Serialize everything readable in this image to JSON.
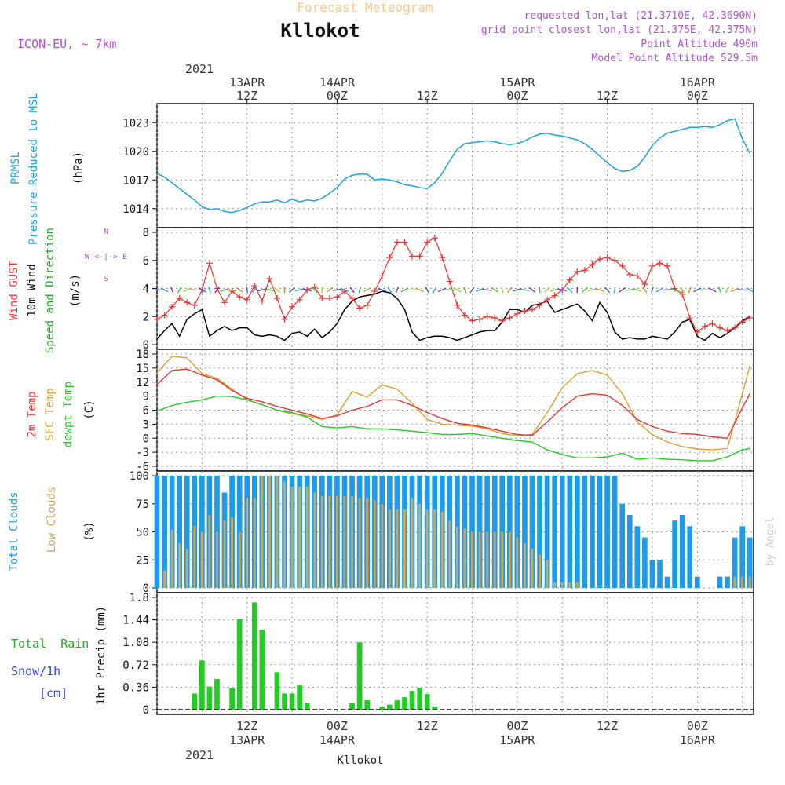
{
  "header": {
    "title_top": "Forecast Meteogram",
    "location": "Kllokot",
    "model": "ICON-EU, ~ 7km",
    "requested": "requested lon,lat (21.3710E, 42.3690N)",
    "grid_point": "grid point closest lon,lat (21.375E, 42.375N)",
    "point_altitude": "Point Altitude 490m",
    "model_altitude": "Model Point Altitude 529.5m"
  },
  "time_axis": {
    "year": "2021",
    "top_labels": [
      {
        "hour": 12,
        "line1": "13APR",
        "line2": "12Z"
      },
      {
        "hour": 24,
        "line1": "14APR",
        "line2": "00Z"
      },
      {
        "hour": 36,
        "line1": "",
        "line2": "12Z"
      },
      {
        "hour": 48,
        "line1": "15APR",
        "line2": "00Z"
      },
      {
        "hour": 60,
        "line1": "",
        "line2": "12Z"
      },
      {
        "hour": 72,
        "line1": "16APR",
        "line2": "00Z"
      }
    ],
    "bottom_labels": [
      {
        "hour": 12,
        "line1": "12Z",
        "line2": "13APR"
      },
      {
        "hour": 24,
        "line1": "00Z",
        "line2": "14APR"
      },
      {
        "hour": 36,
        "line1": "12Z",
        "line2": ""
      },
      {
        "hour": 48,
        "line1": "00Z",
        "line2": "15APR"
      },
      {
        "hour": 60,
        "line1": "12Z",
        "line2": ""
      },
      {
        "hour": 72,
        "line1": "00Z",
        "line2": "16APR"
      }
    ],
    "footer_station": "Kllokot",
    "watermark": "by Angel"
  },
  "panel_labels": {
    "pressure": {
      "label1": "PRMSL",
      "label2": "Pressure Reduced to MSL",
      "unit": "(hPa)"
    },
    "wind": {
      "label1": "Wind GUST",
      "label2": "10m Wind",
      "label3": "Speed and Direction",
      "unit": "(m/s)",
      "compass": "W <-|-> E"
    },
    "temp": {
      "label1": "2m Temp",
      "label2": "SFC Temp",
      "label3": "dewpt Temp",
      "unit": "(C)"
    },
    "clouds": {
      "label1": "Total Clouds",
      "label2": "Low Clouds",
      "unit": "(%)"
    },
    "precip": {
      "label1": "Total  Rain",
      "label2": "Snow/1h",
      "label3": "[cm]",
      "unit": "1hr Precip (mm)"
    }
  },
  "colors": {
    "pressure": "#1aa3e6",
    "gust": "#ee3333",
    "wind": "#000000",
    "t2m": "#ee3333",
    "tsfc": "#dda030",
    "dewpt": "#22cc22",
    "total_clouds": "#1e9be8",
    "low_clouds": "#c8a85a",
    "rain": "#22cc22",
    "snow": "#3344ee",
    "header_purple": "#b050d0",
    "title_orange": "#f5c890"
  },
  "chart_data": [
    {
      "type": "line",
      "name": "pressure",
      "ylim": [
        1012.5,
        1024.5
      ],
      "yticks": [
        1014,
        1017,
        1020,
        1023
      ],
      "x": [
        0,
        1,
        2,
        3,
        4,
        5,
        6,
        7,
        8,
        9,
        10,
        11,
        12,
        13,
        14,
        15,
        16,
        17,
        18,
        19,
        20,
        21,
        22,
        23,
        24,
        25,
        26,
        27,
        28,
        29,
        30,
        31,
        32,
        33,
        34,
        35,
        36,
        37,
        38,
        39,
        40,
        41,
        42,
        43,
        44,
        45,
        46,
        47,
        48,
        49,
        50,
        51,
        52,
        53,
        54,
        55,
        56,
        57,
        58,
        59,
        60,
        61,
        62,
        63,
        64,
        65,
        66,
        67,
        68,
        69,
        70,
        71,
        72,
        73,
        74,
        75,
        76,
        77,
        78,
        79
      ],
      "values": [
        1017.7,
        1017.3,
        1016.7,
        1016.1,
        1015.5,
        1014.9,
        1014.2,
        1013.9,
        1014.0,
        1013.7,
        1013.6,
        1013.8,
        1014.1,
        1014.5,
        1014.7,
        1014.7,
        1014.9,
        1014.6,
        1015.0,
        1014.7,
        1014.9,
        1014.8,
        1015.1,
        1015.6,
        1016.2,
        1017.1,
        1017.5,
        1017.6,
        1017.6,
        1017.0,
        1017.1,
        1017.0,
        1016.8,
        1016.5,
        1016.4,
        1016.2,
        1016.1,
        1016.7,
        1017.7,
        1019.0,
        1020.2,
        1020.8,
        1020.9,
        1021.0,
        1021.1,
        1021.0,
        1020.8,
        1020.7,
        1020.8,
        1021.1,
        1021.5,
        1021.8,
        1021.9,
        1021.7,
        1021.6,
        1021.4,
        1021.2,
        1020.8,
        1020.2,
        1019.5,
        1018.8,
        1018.2,
        1017.9,
        1018.0,
        1018.4,
        1019.4,
        1020.6,
        1021.4,
        1021.9,
        1022.1,
        1022.3,
        1022.5,
        1022.5,
        1022.6,
        1022.5,
        1022.8,
        1023.2,
        1023.4,
        1021.3,
        1019.8
      ]
    },
    {
      "type": "line",
      "name": "wind",
      "ylim": [
        0,
        8
      ],
      "yticks": [
        0,
        2,
        4,
        6,
        8
      ],
      "x": [
        0,
        1,
        2,
        3,
        4,
        5,
        6,
        7,
        8,
        9,
        10,
        11,
        12,
        13,
        14,
        15,
        16,
        17,
        18,
        19,
        20,
        21,
        22,
        23,
        24,
        25,
        26,
        27,
        28,
        29,
        30,
        31,
        32,
        33,
        34,
        35,
        36,
        37,
        38,
        39,
        40,
        41,
        42,
        43,
        44,
        45,
        46,
        47,
        48,
        49,
        50,
        51,
        52,
        53,
        54,
        55,
        56,
        57,
        58,
        59,
        60,
        61,
        62,
        63,
        64,
        65,
        66,
        67,
        68,
        69,
        70,
        71,
        72,
        73,
        74,
        75,
        76,
        77,
        78,
        79
      ],
      "series": [
        {
          "name": "Wind GUST",
          "values": [
            1.8,
            2.1,
            2.7,
            3.3,
            3.0,
            2.8,
            3.9,
            5.8,
            4.0,
            3.0,
            3.8,
            3.4,
            3.2,
            4.2,
            3.1,
            4.7,
            3.3,
            1.8,
            2.7,
            3.2,
            3.9,
            4.1,
            3.3,
            3.3,
            3.4,
            3.8,
            3.3,
            2.6,
            2.8,
            3.8,
            4.9,
            6.2,
            7.3,
            7.3,
            6.3,
            6.3,
            7.3,
            7.6,
            6.2,
            4.5,
            2.8,
            2.1,
            1.7,
            1.8,
            2.0,
            1.9,
            1.7,
            1.9,
            2.2,
            2.4,
            2.5,
            2.8,
            3.2,
            3.5,
            3.9,
            4.6,
            5.2,
            5.3,
            5.7,
            6.1,
            6.2,
            6.0,
            5.6,
            5.0,
            4.9,
            4.3,
            5.6,
            5.8,
            5.6,
            4.0,
            3.6,
            1.9,
            0.9,
            1.3,
            1.5,
            1.2,
            1.0,
            1.2,
            1.6,
            1.9
          ]
        },
        {
          "name": "10m Wind",
          "values": [
            0.4,
            1.0,
            1.5,
            0.6,
            1.8,
            2.2,
            2.5,
            0.6,
            1.0,
            1.3,
            1.0,
            1.2,
            1.2,
            0.7,
            0.6,
            0.7,
            0.6,
            0.3,
            0.8,
            0.9,
            0.6,
            1.1,
            0.5,
            0.9,
            1.5,
            2.5,
            3.1,
            3.4,
            3.5,
            3.6,
            3.8,
            3.7,
            3.3,
            2.5,
            0.9,
            0.3,
            0.5,
            0.6,
            0.6,
            0.5,
            0.3,
            0.5,
            0.7,
            0.9,
            1.0,
            1.0,
            1.6,
            2.5,
            2.5,
            2.3,
            2.8,
            2.9,
            3.1,
            2.3,
            2.5,
            2.7,
            2.9,
            2.4,
            1.7,
            3.0,
            2.3,
            0.9,
            0.4,
            0.5,
            0.4,
            0.4,
            0.6,
            0.5,
            0.4,
            0.9,
            1.6,
            1.8,
            0.6,
            0.3,
            0.8,
            0.5,
            0.8,
            1.2,
            1.7,
            2.0
          ]
        }
      ]
    },
    {
      "type": "line",
      "name": "temperature",
      "ylim": [
        -6,
        18
      ],
      "yticks": [
        -6,
        -3,
        0,
        3,
        6,
        9,
        12,
        15,
        18
      ],
      "x": [
        0,
        2,
        4,
        6,
        8,
        10,
        12,
        14,
        16,
        18,
        20,
        22,
        24,
        26,
        28,
        30,
        32,
        34,
        36,
        38,
        40,
        42,
        44,
        46,
        48,
        50,
        52,
        54,
        56,
        58,
        60,
        62,
        64,
        66,
        68,
        70,
        72,
        74,
        76,
        78,
        79
      ],
      "series": [
        {
          "name": "2m Temp",
          "values": [
            11.5,
            14.5,
            14.8,
            13.5,
            12.5,
            10.2,
            8.5,
            7.8,
            6.8,
            6.0,
            5.2,
            4.2,
            4.8,
            6.0,
            6.8,
            8.2,
            8.2,
            7.0,
            5.5,
            4.2,
            3.2,
            2.8,
            2.2,
            1.5,
            0.8,
            0.6,
            3.5,
            6.5,
            9.0,
            9.5,
            9.2,
            7.0,
            4.0,
            2.5,
            1.5,
            1.0,
            0.8,
            0.3,
            0.0,
            6.5,
            9.5
          ]
        },
        {
          "name": "SFC Temp",
          "values": [
            14.0,
            17.5,
            17.2,
            13.8,
            12.8,
            10.5,
            8.2,
            7.2,
            6.0,
            5.2,
            4.8,
            4.0,
            5.0,
            10.0,
            8.8,
            11.4,
            10.5,
            7.5,
            4.0,
            3.0,
            2.8,
            2.6,
            2.0,
            1.0,
            0.5,
            0.8,
            5.5,
            10.8,
            13.8,
            14.5,
            13.5,
            9.5,
            3.5,
            0.8,
            -0.8,
            -1.8,
            -2.3,
            -2.5,
            -2.2,
            9.5,
            15.5
          ]
        },
        {
          "name": "dewpt Temp",
          "values": [
            5.8,
            7.0,
            7.7,
            8.2,
            9.0,
            8.9,
            8.2,
            7.2,
            6.0,
            5.5,
            4.5,
            2.5,
            2.2,
            2.5,
            2.0,
            2.0,
            1.8,
            1.5,
            1.2,
            0.8,
            0.8,
            1.0,
            0.5,
            0.0,
            -0.5,
            -0.8,
            -2.5,
            -3.5,
            -4.2,
            -4.2,
            -4.0,
            -3.2,
            -4.5,
            -4.2,
            -4.5,
            -4.6,
            -4.8,
            -4.8,
            -4.0,
            -2.5,
            -2.2
          ]
        }
      ]
    },
    {
      "type": "bar",
      "name": "clouds",
      "ylim": [
        0,
        100
      ],
      "yticks": [
        0,
        25,
        50,
        75,
        100
      ],
      "x": [
        0,
        1,
        2,
        3,
        4,
        5,
        6,
        7,
        8,
        9,
        10,
        11,
        12,
        13,
        14,
        15,
        16,
        17,
        18,
        19,
        20,
        21,
        22,
        23,
        24,
        25,
        26,
        27,
        28,
        29,
        30,
        31,
        32,
        33,
        34,
        35,
        36,
        37,
        38,
        39,
        40,
        41,
        42,
        43,
        44,
        45,
        46,
        47,
        48,
        49,
        50,
        51,
        52,
        53,
        54,
        55,
        56,
        57,
        58,
        59,
        60,
        61,
        62,
        63,
        64,
        65,
        66,
        67,
        68,
        69,
        70,
        71,
        72,
        73,
        74,
        75,
        76,
        77,
        78,
        79
      ],
      "series": [
        {
          "name": "Total Clouds",
          "values": [
            100,
            100,
            100,
            100,
            100,
            100,
            100,
            100,
            100,
            85,
            100,
            100,
            100,
            100,
            100,
            100,
            100,
            100,
            100,
            100,
            100,
            100,
            100,
            100,
            100,
            100,
            100,
            100,
            100,
            100,
            100,
            100,
            100,
            100,
            100,
            100,
            100,
            100,
            100,
            100,
            100,
            100,
            100,
            100,
            100,
            100,
            100,
            100,
            100,
            100,
            100,
            100,
            100,
            100,
            100,
            100,
            100,
            100,
            100,
            100,
            100,
            100,
            75,
            65,
            55,
            45,
            25,
            25,
            10,
            60,
            65,
            55,
            10,
            0,
            0,
            10,
            10,
            45,
            55,
            45
          ]
        },
        {
          "name": "Low Clouds",
          "values": [
            0,
            15,
            52,
            40,
            35,
            55,
            50,
            65,
            50,
            60,
            63,
            50,
            80,
            80,
            100,
            100,
            100,
            95,
            90,
            90,
            90,
            85,
            82,
            82,
            82,
            82,
            82,
            80,
            80,
            78,
            75,
            70,
            70,
            70,
            80,
            75,
            70,
            70,
            68,
            60,
            55,
            53,
            50,
            50,
            50,
            50,
            50,
            50,
            45,
            40,
            35,
            30,
            25,
            5,
            5,
            5,
            5,
            0,
            0,
            0,
            0,
            0,
            0,
            0,
            0,
            0,
            0,
            0,
            0,
            0,
            0,
            0,
            0,
            0,
            0,
            0,
            0,
            10,
            10,
            10
          ]
        }
      ]
    },
    {
      "type": "bar",
      "name": "precip",
      "ylim": [
        0,
        1.8
      ],
      "yticks": [
        0,
        0.36,
        0.72,
        1.08,
        1.44,
        1.8
      ],
      "x": [
        5,
        6,
        7,
        8,
        9,
        10,
        11,
        12,
        13,
        14,
        15,
        16,
        17,
        18,
        19,
        20,
        21,
        22,
        23,
        24,
        25,
        26,
        27,
        28,
        29,
        30,
        31,
        32,
        33,
        34,
        35,
        36,
        37,
        38,
        39
      ],
      "series": [
        {
          "name": "Total Rain",
          "values": [
            0.26,
            0.79,
            0.37,
            0.49,
            0.0,
            0.34,
            1.45,
            0.0,
            1.72,
            1.28,
            0.0,
            0.6,
            0.26,
            0.26,
            0.4,
            0.1,
            0.0,
            0.0,
            0.0,
            0.0,
            0.0,
            0.1,
            1.08,
            0.15,
            0.0,
            0.05,
            0.08,
            0.15,
            0.2,
            0.3,
            0.35,
            0.25,
            0.05,
            0.0,
            0.0
          ]
        }
      ]
    }
  ]
}
